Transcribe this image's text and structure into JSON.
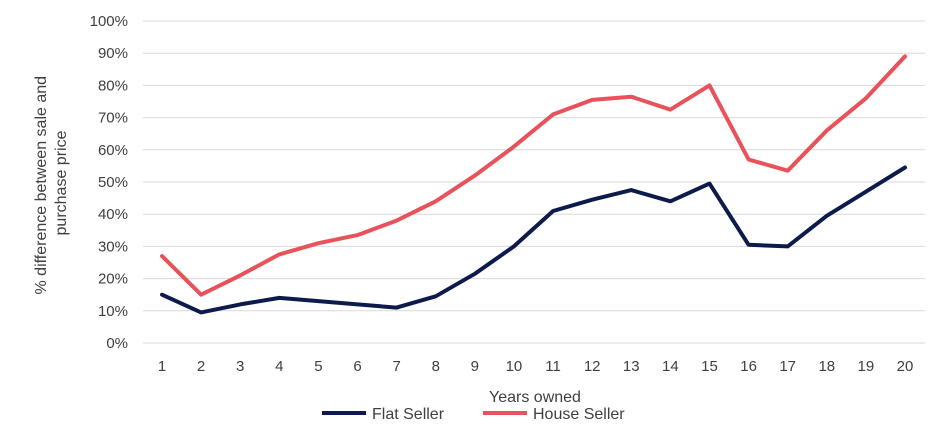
{
  "chart_data": {
    "type": "line",
    "title": "",
    "xlabel": "Years owned",
    "ylabel": "% difference between sale and purchase price",
    "ylabel_lines": [
      "% difference between sale and",
      "purchase price"
    ],
    "categories": [
      "1",
      "2",
      "3",
      "4",
      "5",
      "6",
      "7",
      "8",
      "9",
      "10",
      "11",
      "12",
      "13",
      "14",
      "15",
      "16",
      "17",
      "18",
      "19",
      "20"
    ],
    "ylim": [
      0,
      100
    ],
    "yticks": [
      0,
      10,
      20,
      30,
      40,
      50,
      60,
      70,
      80,
      90,
      100
    ],
    "ytick_labels": [
      "0%",
      "10%",
      "20%",
      "30%",
      "40%",
      "50%",
      "60%",
      "70%",
      "80%",
      "90%",
      "100%"
    ],
    "grid": true,
    "legend_position": "bottom",
    "series": [
      {
        "name": "Flat Seller",
        "color": "#0d1b4c",
        "values": [
          15,
          9.5,
          12,
          14,
          13,
          12,
          11,
          14.5,
          21.5,
          30,
          41,
          44.5,
          47.5,
          44,
          49.5,
          30.5,
          30,
          39.5,
          47,
          54.5
        ]
      },
      {
        "name": "House Seller",
        "color": "#e8525a",
        "values": [
          27,
          15,
          21,
          27.5,
          31,
          33.5,
          38,
          44,
          52,
          61,
          71,
          75.5,
          76.5,
          72.5,
          80,
          57,
          53.5,
          66,
          76,
          89
        ]
      }
    ]
  }
}
